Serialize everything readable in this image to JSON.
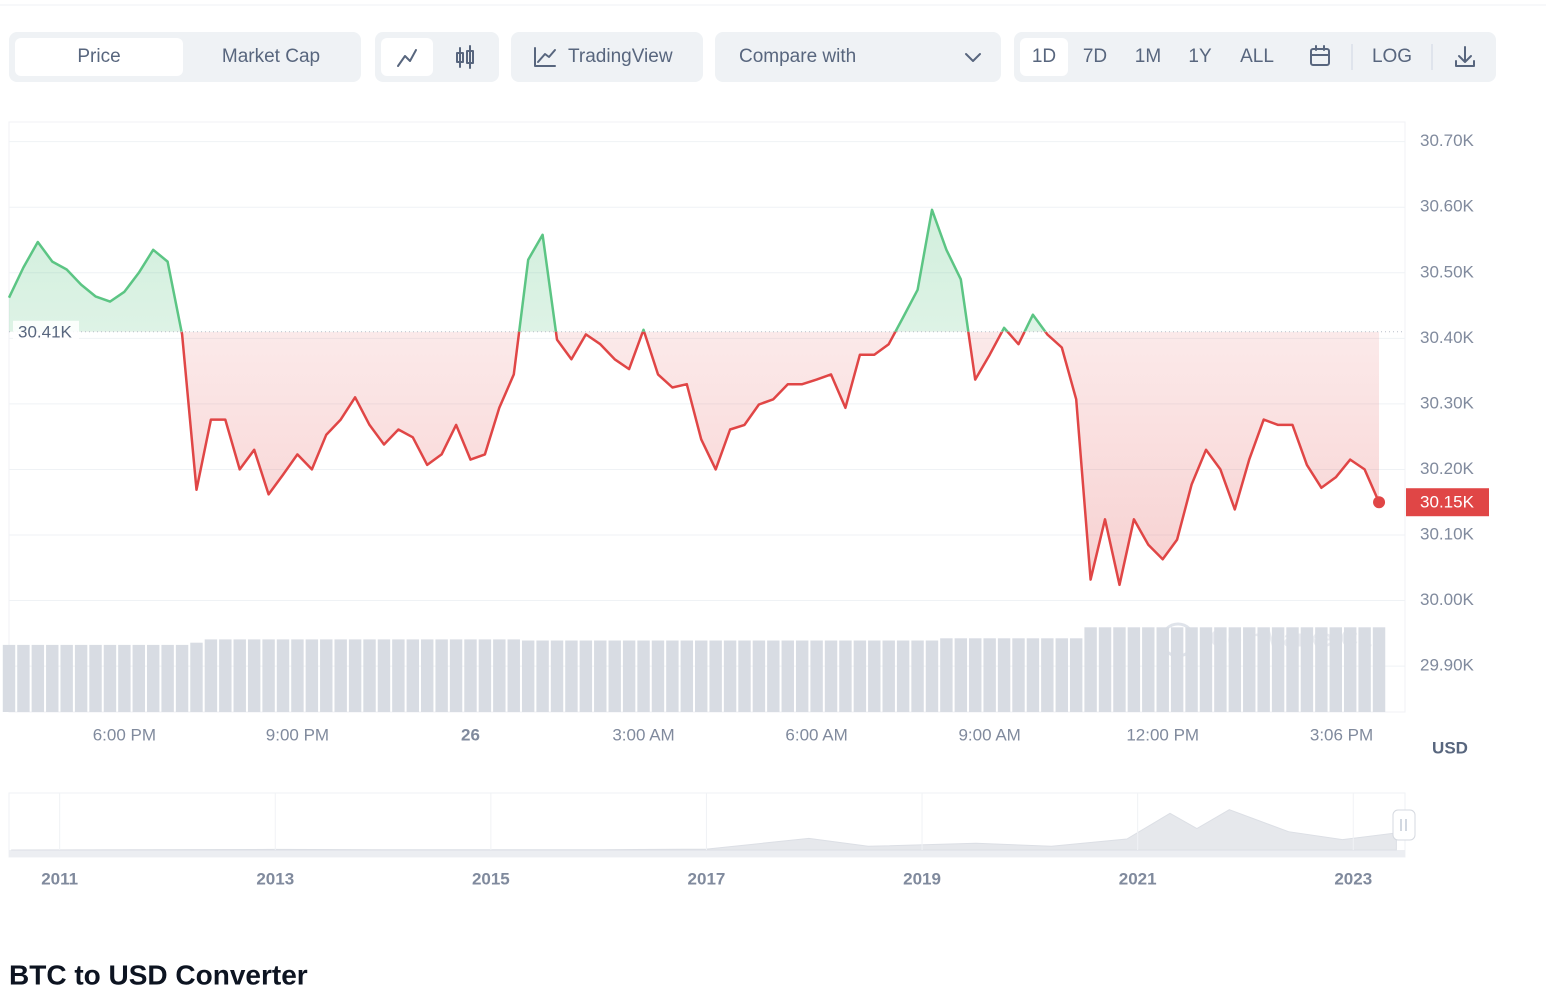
{
  "toolbar": {
    "tabs": [
      "Price",
      "Market Cap"
    ],
    "trading_view": "TradingView",
    "compare": "Compare with",
    "ranges": [
      "1D",
      "7D",
      "1M",
      "1Y",
      "ALL"
    ],
    "log": "LOG"
  },
  "chart_data": {
    "type": "line",
    "x": [
      16,
      16.25,
      16.5,
      16.75,
      17,
      17.25,
      17.5,
      17.75,
      18,
      18.25,
      18.5,
      18.75,
      19,
      19.25,
      19.5,
      19.75,
      20,
      20.25,
      20.5,
      20.75,
      21,
      21.25,
      21.5,
      21.75,
      22,
      22.25,
      22.5,
      22.75,
      23,
      23.25,
      23.5,
      23.75,
      24,
      24.25,
      24.5,
      24.75,
      25,
      25.25,
      25.5,
      25.75,
      26,
      26.25,
      26.5,
      26.75,
      27,
      27.25,
      27.5,
      27.75,
      28,
      28.25,
      28.5,
      28.75,
      29,
      29.25,
      29.5,
      29.75,
      30,
      30.25,
      30.5,
      30.75,
      31,
      31.25,
      31.5,
      31.75,
      32,
      32.25,
      32.5,
      32.75,
      33,
      33.25,
      33.5,
      33.75,
      34,
      34.25,
      34.5,
      34.75,
      35,
      35.25,
      35.5,
      35.75,
      36,
      36.25,
      36.5,
      36.75,
      37,
      37.25,
      37.5,
      37.75,
      38,
      38.25,
      38.5,
      38.75,
      39,
      39.25,
      39.5,
      39.75
    ],
    "values": [
      30462,
      30508,
      30547,
      30517,
      30505,
      30482,
      30464,
      30456,
      30471,
      30500,
      30535,
      30517,
      30406,
      30169,
      30276,
      30276,
      30200,
      30230,
      30162,
      30192,
      30223,
      30200,
      30253,
      30276,
      30310,
      30268,
      30238,
      30261,
      30249,
      30207,
      30223,
      30268,
      30215,
      30223,
      30294,
      30345,
      30520,
      30558,
      30398,
      30368,
      30406,
      30391,
      30368,
      30353,
      30413,
      30345,
      30325,
      30330,
      30246,
      30200,
      30261,
      30268,
      30299,
      30307,
      30330,
      30330,
      30337,
      30345,
      30294,
      30375,
      30375,
      30391,
      30432,
      30474,
      30596,
      30535,
      30490,
      30337,
      30375,
      30416,
      30391,
      30436,
      30406,
      30386,
      30307,
      30032,
      30124,
      30024,
      30124,
      30085,
      30063,
      30093,
      30177,
      30230,
      30200,
      30139,
      30215,
      30276,
      30268,
      30268,
      30207,
      30172,
      30188,
      30215,
      30200,
      30150
    ],
    "up_color": "#5cc584",
    "down_color": "#e04646",
    "baseline": {
      "value": 30410,
      "label": "30.41K"
    },
    "current_price": {
      "value": 30150,
      "label": "30.15K"
    },
    "xlim": [
      16,
      40.2
    ],
    "xticks": [
      {
        "value": 18,
        "label": "6:00 PM"
      },
      {
        "value": 21,
        "label": "9:00 PM"
      },
      {
        "value": 24,
        "label": "26"
      },
      {
        "value": 27,
        "label": "3:00 AM"
      },
      {
        "value": 30,
        "label": "6:00 AM"
      },
      {
        "value": 33,
        "label": "9:00 AM"
      },
      {
        "value": 36,
        "label": "12:00 PM"
      },
      {
        "value": 39.1,
        "label": "3:06 PM"
      }
    ],
    "ylim": [
      29830,
      30730
    ],
    "yticks": [
      {
        "value": 29900,
        "label": "29.90K"
      },
      {
        "value": 30000,
        "label": "30.00K"
      },
      {
        "value": 30100,
        "label": "30.10K"
      },
      {
        "value": 30200,
        "label": "30.20K"
      },
      {
        "value": 30300,
        "label": "30.30K"
      },
      {
        "value": 30400,
        "label": "30.40K"
      },
      {
        "value": 30500,
        "label": "30.50K"
      },
      {
        "value": 30600,
        "label": "30.60K"
      },
      {
        "value": 30700,
        "label": "30.70K"
      }
    ],
    "grid": true,
    "y_label": "USD",
    "watermark": "CoinMarketCap",
    "volume": {
      "color": "#d8dce3",
      "ylim": [
        0,
        100
      ],
      "values": [
        61,
        61,
        61,
        61,
        61,
        61,
        61,
        61,
        61,
        61,
        61,
        61,
        61,
        63,
        66,
        66,
        66,
        66,
        66,
        66,
        66,
        66,
        66,
        66,
        66,
        66,
        66,
        66,
        66,
        66,
        66,
        66,
        66,
        66,
        66,
        66,
        65,
        65,
        65,
        65,
        65,
        65,
        65,
        65,
        65,
        65,
        65,
        65,
        65,
        65,
        65,
        65,
        65,
        65,
        65,
        65,
        65,
        65,
        65,
        65,
        65,
        65,
        65,
        65,
        65,
        67,
        67,
        67,
        67,
        67,
        67,
        67,
        67,
        67,
        67,
        77,
        77,
        77,
        77,
        77,
        77,
        77,
        77,
        77,
        77,
        77,
        77,
        77,
        77,
        77,
        77,
        77,
        77,
        77,
        77,
        77
      ]
    },
    "navigator": {
      "x": [
        2010.55,
        2013,
        2014,
        2016,
        2017,
        2017.95,
        2018.5,
        2019.5,
        2020.2,
        2020.9,
        2021.3,
        2021.55,
        2021.85,
        2022.4,
        2022.9,
        2023.4
      ],
      "values": [
        0,
        1000,
        500,
        500,
        1500,
        19000,
        6000,
        11000,
        6000,
        18000,
        60000,
        35000,
        66000,
        30000,
        17000,
        28000
      ],
      "color": "#e6e8ec",
      "xlim": [
        2010.53,
        2023.48
      ],
      "ylim": [
        0,
        90000
      ],
      "xticks": [
        2011,
        2013,
        2015,
        2017,
        2019,
        2021,
        2023
      ]
    }
  },
  "converter_title": "BTC to USD Converter"
}
